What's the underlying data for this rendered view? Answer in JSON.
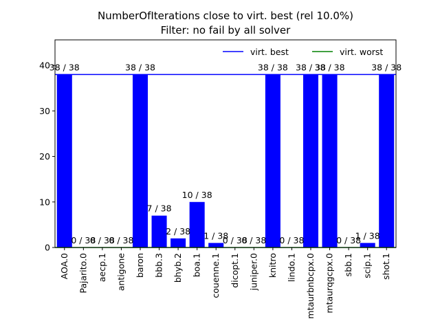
{
  "chart_data": {
    "type": "bar",
    "title": "NumberOfIterations close to virt. best (rel 10.0%)",
    "subtitle": "Filter: no fail by all solver",
    "xlabel": "",
    "ylabel": "",
    "ylim": [
      0,
      45.6
    ],
    "yticks": [
      0,
      10,
      20,
      30,
      40
    ],
    "grid": false,
    "legend_position": "top-right",
    "bar_color": "#0000ff",
    "categories": [
      "AOA.0",
      "Pajarito.0",
      "aecp.1",
      "antigone",
      "baron",
      "bbb.3",
      "bhyb.2",
      "boa.1",
      "couenne.1",
      "dicopt.1",
      "juniper.0",
      "knitro",
      "lindo.1",
      "mtaurbnbcpx.0",
      "mtaurqgcpx.0",
      "sbb.1",
      "scip.1",
      "shot.1"
    ],
    "values": [
      38,
      0,
      0,
      0,
      38,
      7,
      2,
      10,
      1,
      0,
      0,
      38,
      0,
      38,
      38,
      0,
      1,
      38
    ],
    "data_labels": [
      "38 / 38",
      "0 / 38",
      "0 / 38",
      "0 / 38",
      "38 / 38",
      "7 / 38",
      "2 / 38",
      "10 / 38",
      "1 / 38",
      "0 / 38",
      "0 / 38",
      "38 / 38",
      "0 / 38",
      "38 / 38",
      "38 / 38",
      "0 / 38",
      "1 / 38",
      "38 / 38"
    ],
    "lines": [
      {
        "name": "virt. best",
        "value": 38,
        "color": "#0000ff"
      },
      {
        "name": "virt. worst",
        "value": 0,
        "color": "#008000"
      }
    ]
  }
}
